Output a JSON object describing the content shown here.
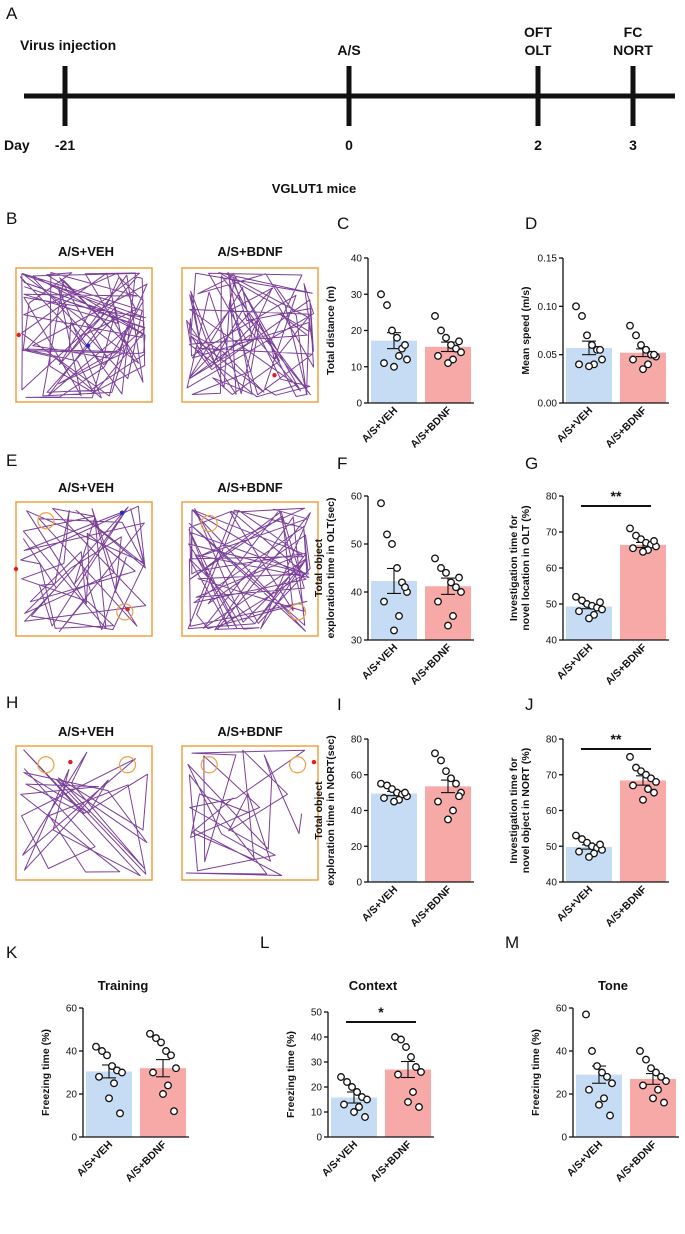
{
  "colors": {
    "veh": "#c5dcf4",
    "bdnf": "#f7a9a7",
    "track": "#7b3f98",
    "arena": "#f0a040",
    "marker_red": "#e02020",
    "marker_blue": "#2030c0"
  },
  "panel_labels": [
    "A",
    "B",
    "C",
    "D",
    "E",
    "F",
    "G",
    "H",
    "I",
    "J",
    "K",
    "L",
    "M"
  ],
  "timeline": {
    "events": [
      {
        "label": "Virus injection",
        "day": "-21"
      },
      {
        "label": "A/S",
        "day": "0"
      },
      {
        "label_line1": "OFT",
        "label_line2": "OLT",
        "day": "2"
      },
      {
        "label_line1": "FC",
        "label_line2": "NORT",
        "day": "3"
      }
    ],
    "day_label": "Day"
  },
  "section_title": "VGLUT1 mice",
  "track_titles": {
    "veh": "A/S+VEH",
    "bdnf": "A/S+BDNF"
  },
  "chart_data": [
    {
      "id": "C",
      "type": "bar",
      "title": "",
      "ylabel": "Total distance (m)",
      "ylim": [
        0,
        40
      ],
      "yticks": [
        0,
        10,
        20,
        30,
        40
      ],
      "tick_labels": [
        "0",
        "10",
        "20",
        "30",
        "40"
      ],
      "categories": [
        "A/S+VEH",
        "A/S+BDNF"
      ],
      "values": [
        17.2,
        15.5
      ],
      "errors": [
        2.2,
        1.3
      ],
      "points": [
        [
          30,
          27,
          20,
          18,
          15,
          12,
          11,
          13,
          10,
          16
        ],
        [
          24,
          20,
          18,
          16,
          15,
          14,
          13,
          12,
          11,
          17
        ]
      ],
      "significance": ""
    },
    {
      "id": "D",
      "type": "bar",
      "title": "",
      "ylabel": "Mean speed (m/s)",
      "ylim": [
        0,
        0.15
      ],
      "yticks": [
        0,
        0.05,
        0.1,
        0.15
      ],
      "tick_labels": [
        "0.00",
        "0.05",
        "0.10",
        "0.15"
      ],
      "categories": [
        "A/S+VEH",
        "A/S+BDNF"
      ],
      "values": [
        0.057,
        0.052
      ],
      "errors": [
        0.007,
        0.004
      ],
      "points": [
        [
          0.1,
          0.09,
          0.07,
          0.06,
          0.055,
          0.045,
          0.04,
          0.04,
          0.038,
          0.055
        ],
        [
          0.08,
          0.07,
          0.06,
          0.055,
          0.05,
          0.048,
          0.045,
          0.04,
          0.035,
          0.05
        ]
      ],
      "significance": ""
    },
    {
      "id": "F",
      "type": "bar",
      "title": "",
      "ylabel": "Total object exploration time in OLT(sec)",
      "ylim": [
        30,
        60
      ],
      "yticks": [
        30,
        40,
        50,
        60
      ],
      "tick_labels": [
        "30",
        "40",
        "50",
        "60"
      ],
      "categories": [
        "A/S+VEH",
        "A/S+BDNF"
      ],
      "values": [
        42.3,
        41.2
      ],
      "errors": [
        2.6,
        1.7
      ],
      "points": [
        [
          58.5,
          52,
          50,
          45,
          42,
          40,
          38,
          35,
          32,
          41
        ],
        [
          47,
          45,
          44,
          42,
          41,
          40,
          38,
          35,
          33,
          43
        ]
      ],
      "significance": ""
    },
    {
      "id": "G",
      "type": "bar",
      "title": "",
      "ylabel": "Investigation time for novel location in OLT (%)",
      "ylim": [
        40,
        80
      ],
      "yticks": [
        40,
        50,
        60,
        70,
        80
      ],
      "tick_labels": [
        "40",
        "50",
        "60",
        "70",
        "80"
      ],
      "categories": [
        "A/S+VEH",
        "A/S+BDNF"
      ],
      "values": [
        49.3,
        66.4
      ],
      "errors": [
        0.6,
        0.7
      ],
      "points": [
        [
          52,
          51,
          50,
          49.5,
          49,
          48.5,
          48,
          47,
          46,
          50.5
        ],
        [
          71,
          69,
          68,
          67,
          66.5,
          66,
          65.5,
          65,
          64.5,
          67.5
        ]
      ],
      "significance": "**"
    },
    {
      "id": "I",
      "type": "bar",
      "title": "",
      "ylabel": "Total object exploration time in NORT(sec)",
      "ylim": [
        0,
        80
      ],
      "yticks": [
        0,
        20,
        40,
        60,
        80
      ],
      "tick_labels": [
        "0",
        "20",
        "40",
        "60",
        "80"
      ],
      "categories": [
        "A/S+VEH",
        "A/S+BDNF"
      ],
      "values": [
        49.5,
        53.5
      ],
      "errors": [
        1.2,
        3.5
      ],
      "points": [
        [
          55,
          54,
          52,
          50,
          49,
          48,
          47,
          46,
          45,
          50
        ],
        [
          72,
          68,
          62,
          58,
          55,
          50,
          45,
          40,
          35,
          48
        ]
      ],
      "significance": ""
    },
    {
      "id": "J",
      "type": "bar",
      "title": "",
      "ylabel": "Investigation time for novel object in NORT (%)",
      "ylim": [
        40,
        80
      ],
      "yticks": [
        40,
        50,
        60,
        70,
        80
      ],
      "tick_labels": [
        "40",
        "50",
        "60",
        "70",
        "80"
      ],
      "categories": [
        "A/S+VEH",
        "A/S+BDNF"
      ],
      "values": [
        49.8,
        68.4
      ],
      "errors": [
        0.6,
        1.3
      ],
      "points": [
        [
          53,
          52,
          51,
          50,
          49.5,
          49,
          48.5,
          48,
          47,
          50.5
        ],
        [
          75,
          72,
          71,
          70,
          69,
          68,
          67,
          66,
          63,
          65
        ]
      ],
      "significance": "**"
    },
    {
      "id": "K",
      "type": "bar",
      "title": "Training",
      "ylabel": "Freezing time (%)",
      "ylim": [
        0,
        60
      ],
      "yticks": [
        0,
        20,
        40,
        60
      ],
      "tick_labels": [
        "0",
        "20",
        "40",
        "60"
      ],
      "categories": [
        "A/S+VEH",
        "A/S+BDNF"
      ],
      "values": [
        30.5,
        32.0
      ],
      "errors": [
        3.0,
        4.0
      ],
      "points": [
        [
          42,
          40,
          38,
          33,
          31,
          30,
          28,
          25,
          18,
          11
        ],
        [
          48,
          46,
          44,
          40,
          38,
          32,
          30,
          24,
          20,
          12
        ]
      ],
      "significance": ""
    },
    {
      "id": "L",
      "type": "bar",
      "title": "Context",
      "ylabel": "Freezing time (%)",
      "ylim": [
        0,
        50
      ],
      "yticks": [
        0,
        10,
        20,
        30,
        40,
        50
      ],
      "tick_labels": [
        "0",
        "10",
        "20",
        "30",
        "40",
        "50"
      ],
      "categories": [
        "A/S+VEH",
        "A/S+BDNF"
      ],
      "values": [
        15.8,
        27.0
      ],
      "errors": [
        2.2,
        3.2
      ],
      "points": [
        [
          24,
          22,
          20,
          18,
          16,
          15,
          13,
          12,
          10,
          8
        ],
        [
          40,
          39,
          36,
          32,
          28,
          26,
          25,
          18,
          14,
          12
        ]
      ],
      "significance": "*"
    },
    {
      "id": "M",
      "type": "bar",
      "title": "Tone",
      "ylabel": "Freezing time (%)",
      "ylim": [
        0,
        60
      ],
      "yticks": [
        0,
        20,
        40,
        60
      ],
      "tick_labels": [
        "0",
        "20",
        "40",
        "60"
      ],
      "categories": [
        "A/S+VEH",
        "A/S+BDNF"
      ],
      "values": [
        29.0,
        27.0
      ],
      "errors": [
        4.0,
        2.5
      ],
      "points": [
        [
          57,
          40,
          33,
          30,
          28,
          25,
          22,
          18,
          15,
          10
        ],
        [
          40,
          36,
          32,
          30,
          28,
          26,
          24,
          22,
          18,
          16
        ]
      ],
      "significance": ""
    }
  ]
}
